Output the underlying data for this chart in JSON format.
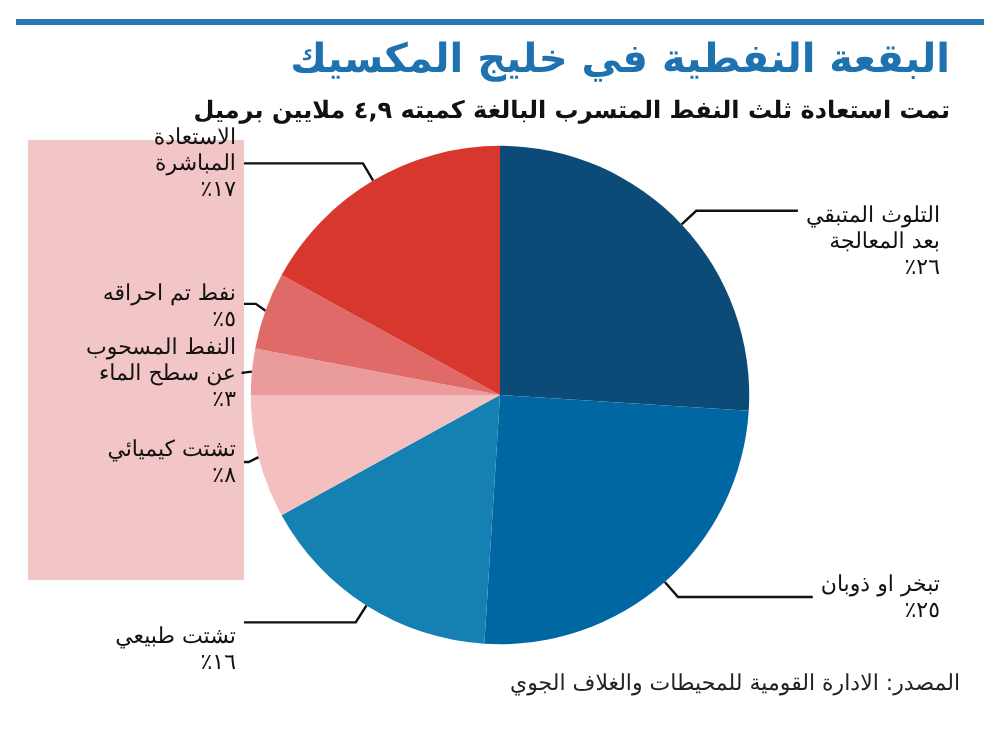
{
  "chart_data": {
    "type": "pie",
    "title": "البقعة النفطية في خليج المكسيك",
    "subtitle": "تمت استعادة ثلث النفط المتسرب البالغة كميته ٤,٩ ملايين برميل",
    "categories": [
      "التلوث المتبقي\nبعد المعالجة",
      "تبخر او ذوبان",
      "تشتت طبيعي",
      "تشتت كيميائي",
      "النفط المسحوب\nعن سطح الماء",
      "نفط تم احراقه",
      "الاستعادة\nالمباشرة"
    ],
    "values": [
      26,
      25,
      16,
      8,
      3,
      5,
      17
    ],
    "value_labels": [
      "٢٦٪",
      "٢٥٪",
      "١٦٪",
      "٨٪",
      "٣٪",
      "٥٪",
      "١٧٪"
    ],
    "colors": [
      "#0c4a78",
      "#0067a3",
      "#1580b2",
      "#f3bfbf",
      "#ea9c9c",
      "#e06a68",
      "#d8372e"
    ],
    "legend": false,
    "annotations": [
      "المصدر: الادارة القومية للمحيطات والغلاف الجوي"
    ]
  }
}
